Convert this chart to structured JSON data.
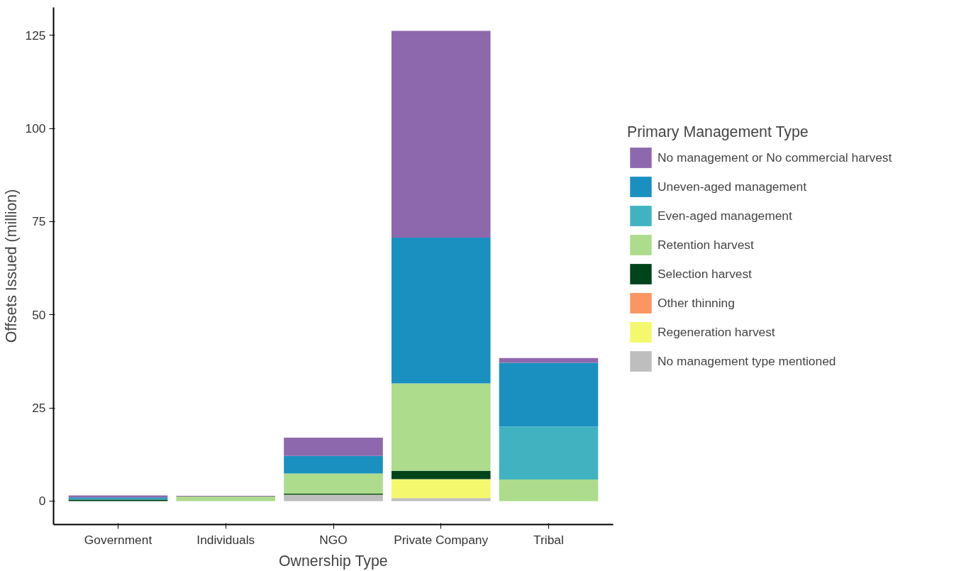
{
  "chart_data": {
    "type": "bar",
    "stacked": true,
    "xlabel": "Ownership Type",
    "ylabel": "Offsets Issued (million)",
    "legend_title": "Primary Management Type",
    "categories": [
      "Government",
      "Individuals",
      "NGO",
      "Private Company",
      "Tribal"
    ],
    "series": [
      {
        "name": "No management type mentioned",
        "color": "#bebebe",
        "values": [
          0,
          0,
          1.6,
          0.8,
          0
        ]
      },
      {
        "name": "Regeneration harvest",
        "color": "#f4f86d",
        "values": [
          0,
          0,
          0.1,
          5.1,
          0
        ]
      },
      {
        "name": "Other thinning",
        "color": "#fc9562",
        "values": [
          0,
          0,
          0,
          0,
          0
        ]
      },
      {
        "name": "Selection harvest",
        "color": "#00441b",
        "values": [
          0.4,
          0,
          0.3,
          2.2,
          0
        ]
      },
      {
        "name": "Retention harvest",
        "color": "#acdc8c",
        "values": [
          0,
          1.2,
          5.4,
          23.5,
          5.8
        ]
      },
      {
        "name": "Even-aged management",
        "color": "#41b3c0",
        "values": [
          0.2,
          0,
          0,
          0,
          14.2
        ]
      },
      {
        "name": "Uneven-aged management",
        "color": "#1a90c0",
        "values": [
          0.4,
          0,
          4.7,
          39.1,
          17.1
        ]
      },
      {
        "name": "No management or No commercial harvest",
        "color": "#8e68ad",
        "values": [
          0.5,
          0.2,
          4.9,
          55.5,
          1.3
        ]
      }
    ],
    "ylim": [
      -6.3,
      132.5
    ],
    "yticks": [
      0,
      25,
      50,
      75,
      100,
      125
    ],
    "grid": false,
    "legend": "right"
  }
}
